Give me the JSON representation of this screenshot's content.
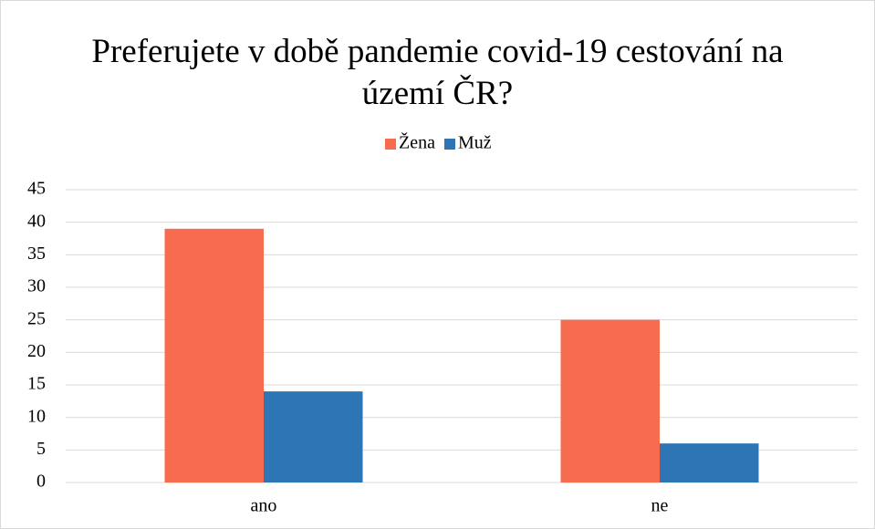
{
  "chart_data": {
    "type": "bar",
    "title": "Preferujete v době pandemie covid-19 cestování na území ČR?",
    "categories": [
      "ano",
      "ne"
    ],
    "series": [
      {
        "name": "Žena",
        "color": "#f76b4f",
        "values": [
          39,
          25
        ]
      },
      {
        "name": "Muž",
        "color": "#2e75b6",
        "values": [
          14,
          6
        ]
      }
    ],
    "ylim": [
      0,
      45
    ],
    "yticks": [
      0,
      5,
      10,
      15,
      20,
      25,
      30,
      35,
      40,
      45
    ],
    "grid": true,
    "legend": "top"
  }
}
